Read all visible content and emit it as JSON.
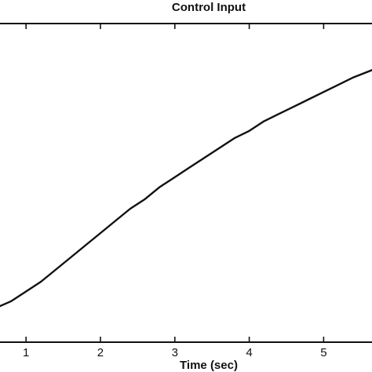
{
  "chart_data": {
    "type": "line",
    "title": "Control Input",
    "xlabel": "Time (sec)",
    "ylabel": "",
    "xlim": [
      0.65,
      5.65
    ],
    "ylim": [
      0,
      1
    ],
    "x_ticks": [
      1,
      2,
      3,
      4,
      5
    ],
    "x_tick_labels": [
      "1",
      "2",
      "3",
      "4",
      "5"
    ],
    "grid": false,
    "series": [
      {
        "values_note": "",
        "x": [
          0.65,
          0.8,
          1.0,
          1.2,
          1.4,
          1.6,
          1.8,
          2.0,
          2.2,
          2.4,
          2.6,
          2.8,
          3.0,
          3.2,
          3.4,
          3.6,
          3.8,
          4.0,
          4.2,
          4.4,
          4.6,
          4.8,
          5.0,
          5.2,
          5.4,
          5.65
        ],
        "y": [
          0.0,
          0.02,
          0.06,
          0.1,
          0.15,
          0.2,
          0.25,
          0.3,
          0.35,
          0.4,
          0.44,
          0.49,
          0.53,
          0.57,
          0.61,
          0.65,
          0.69,
          0.72,
          0.76,
          0.79,
          0.82,
          0.85,
          0.88,
          0.91,
          0.94,
          0.97
        ]
      }
    ]
  }
}
